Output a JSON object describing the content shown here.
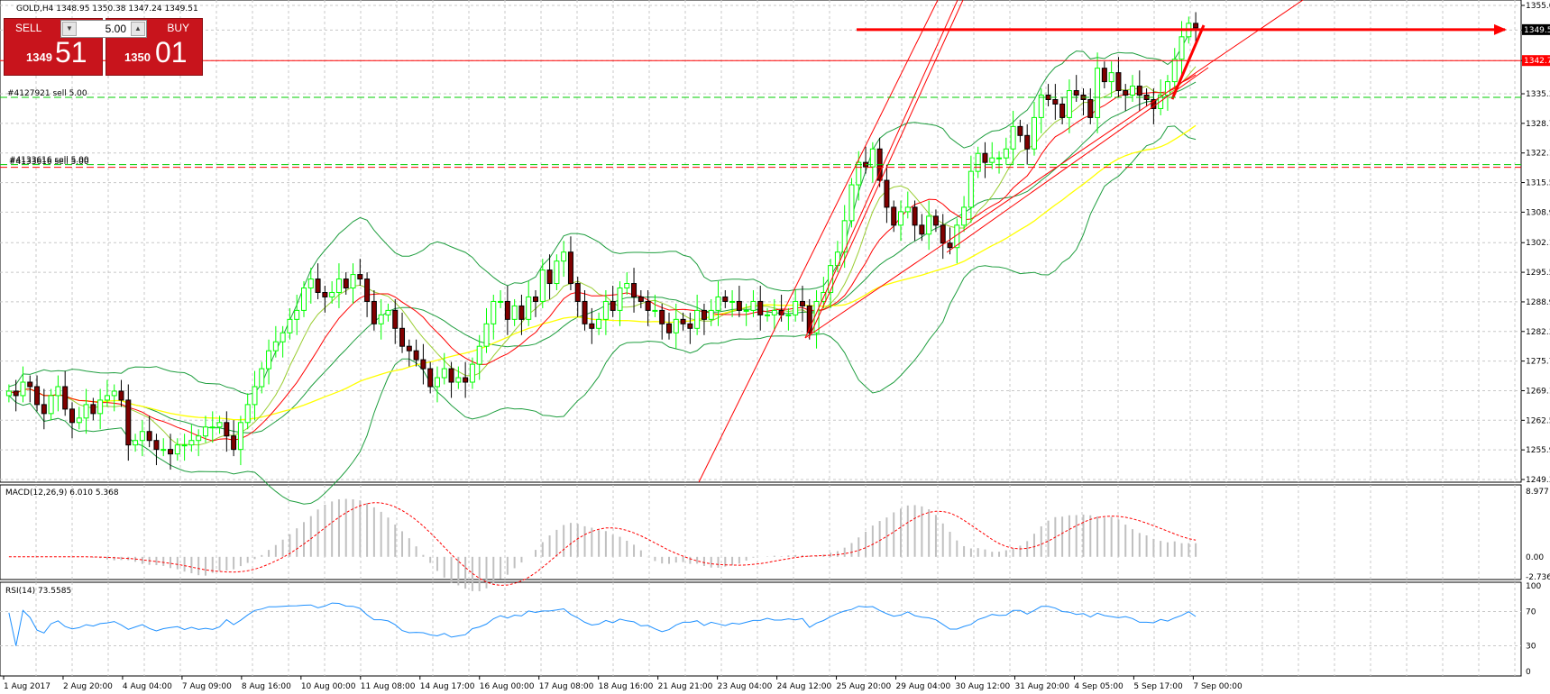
{
  "window": {
    "symbol_info": "GOLD,H4  1348.95 1350.38 1347.24 1349.51"
  },
  "trade_panel": {
    "sell_label": "SELL",
    "buy_label": "BUY",
    "lot": "5.00",
    "sell_small": "1349",
    "sell_big": "51",
    "buy_small": "1350",
    "buy_big": "01"
  },
  "orders": [
    {
      "label": "#4127921 sell 5.00"
    },
    {
      "label": "#4133616 sell 5.00"
    }
  ],
  "price_tags": {
    "current": "1349.5",
    "red_line": "1342.7"
  },
  "colors": {
    "bull": "#00ff00",
    "bear": "#800000",
    "bollinger": "#1f9e3f",
    "ma_fast": "#ff0000",
    "ma_mid": "#9acd32",
    "ma_slow": "#ffff00",
    "trendline": "#ff0000",
    "order_line": "#00cc00",
    "macd_hist": "#c0c0c0",
    "macd_signal": "#ff0000",
    "rsi": "#1e90ff"
  },
  "chart_data": [
    {
      "type": "candlestick",
      "title": "GOLD,H4",
      "ylim": [
        1249.3,
        1355.0
      ],
      "y_ticks": [
        "1355.0",
        "1349.5",
        "1342.7",
        "1335.3",
        "1328.7",
        "1322.1",
        "1315.5",
        "1308.9",
        "1302.1",
        "1295.5",
        "1288.9",
        "1282.3",
        "1275.7",
        "1269.1",
        "1262.5",
        "1255.9",
        "1249.3"
      ],
      "order_levels": [
        1334.5,
        1319.5,
        1318.9
      ],
      "close": [
        1269,
        1268,
        1271,
        1270,
        1266,
        1264,
        1268,
        1270,
        1265,
        1262,
        1263,
        1266,
        1264,
        1267,
        1268,
        1269,
        1267,
        1257,
        1258,
        1260,
        1258,
        1256,
        1256,
        1255,
        1257,
        1257,
        1258,
        1259,
        1261,
        1261,
        1262,
        1259,
        1256,
        1262,
        1266,
        1270,
        1274,
        1278,
        1280,
        1282,
        1285,
        1287,
        1292,
        1294,
        1291,
        1290,
        1291,
        1294,
        1292,
        1295,
        1294,
        1289,
        1284,
        1286,
        1287,
        1283,
        1279,
        1278,
        1276,
        1274,
        1270,
        1272,
        1274,
        1271,
        1272,
        1271,
        1275,
        1279,
        1284,
        1289,
        1289,
        1285,
        1288,
        1285,
        1290,
        1289,
        1296,
        1293,
        1298,
        1300,
        1293,
        1289,
        1284,
        1283,
        1285,
        1289,
        1287,
        1292,
        1293,
        1290,
        1289,
        1287,
        1287,
        1284,
        1282,
        1285,
        1284,
        1283,
        1287,
        1285,
        1287,
        1290,
        1289,
        1289,
        1287,
        1287,
        1289,
        1286,
        1286,
        1287,
        1286,
        1286,
        1289,
        1288,
        1282,
        1289,
        1291,
        1297,
        1300,
        1307,
        1315,
        1320,
        1319,
        1323,
        1316,
        1310,
        1306,
        1309,
        1310,
        1306,
        1304,
        1308,
        1306,
        1302,
        1301,
        1306,
        1310,
        1318,
        1322,
        1320,
        1321,
        1321,
        1323,
        1328,
        1326,
        1323,
        1330,
        1335,
        1334,
        1333,
        1330,
        1336,
        1335,
        1334,
        1330,
        1341,
        1338,
        1340,
        1336,
        1335,
        1337,
        1335,
        1334,
        1332,
        1335,
        1338,
        1343,
        1348,
        1351,
        1350
      ],
      "x_labels": [
        "1 Aug 2017",
        "2 Aug 20:00",
        "4 Aug 04:00",
        "7 Aug 09:00",
        "8 Aug 16:00",
        "10 Aug 00:00",
        "11 Aug 08:00",
        "14 Aug 17:00",
        "16 Aug 00:00",
        "17 Aug 08:00",
        "18 Aug 16:00",
        "21 Aug 21:00",
        "23 Aug 04:00",
        "24 Aug 12:00",
        "25 Aug 20:00",
        "29 Aug 04:00",
        "30 Aug 12:00",
        "31 Aug 20:00",
        "4 Sep 05:00",
        "5 Sep 17:00",
        "7 Sep 00:00"
      ]
    },
    {
      "type": "bar",
      "title": "MACD(12,26,9) 6.010 5.368",
      "ylim": [
        -2.736,
        8.977
      ],
      "y_ticks": [
        "8.977",
        "0.00",
        "-2.736"
      ]
    },
    {
      "type": "line",
      "title": "RSI(14) 73.5585",
      "ylim": [
        0,
        100
      ],
      "y_ticks": [
        "100",
        "70",
        "30",
        "0"
      ]
    }
  ]
}
